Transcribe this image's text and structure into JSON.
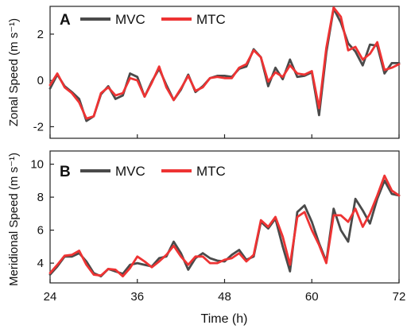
{
  "x_axis": {
    "label": "Time (h)",
    "ticks": [
      24,
      36,
      48,
      60,
      72
    ],
    "tick_labels": [
      "24",
      "36",
      "48",
      "60",
      "72"
    ]
  },
  "colors": {
    "MVC": "#4a4a4a",
    "MTC": "#ee3333"
  },
  "chart_data": [
    {
      "type": "line",
      "panel_label": "A",
      "ylabel": "Zonal Speed (m s⁻¹)",
      "xlim": [
        24,
        72
      ],
      "ylim": [
        -2.5,
        3.2
      ],
      "yticks": [
        -2,
        0,
        2
      ],
      "ytick_labels": [
        "-2",
        "0",
        "2"
      ],
      "grid": false,
      "legend": "top-left",
      "x": [
        24,
        25,
        26,
        27,
        28,
        29,
        30,
        31,
        32,
        33,
        34,
        35,
        36,
        37,
        38,
        39,
        40,
        41,
        42,
        43,
        44,
        45,
        46,
        47,
        48,
        49,
        50,
        51,
        52,
        53,
        54,
        55,
        56,
        57,
        58,
        59,
        60,
        61,
        62,
        63,
        64,
        65,
        66,
        67,
        68,
        69,
        70,
        71,
        72
      ],
      "series": [
        {
          "name": "MVC",
          "values": [
            -0.35,
            0.25,
            -0.25,
            -0.5,
            -0.8,
            -1.75,
            -1.55,
            -0.6,
            -0.25,
            -0.8,
            -0.65,
            0.3,
            0.15,
            -0.7,
            -0.05,
            0.5,
            -0.2,
            -0.85,
            -0.4,
            0.25,
            -0.5,
            -0.25,
            0.1,
            0.2,
            0.2,
            0.15,
            0.5,
            0.6,
            1.35,
            1.0,
            -0.25,
            0.55,
            0.05,
            0.9,
            0.15,
            0.2,
            0.35,
            -1.5,
            1.2,
            3.1,
            2.5,
            1.6,
            1.25,
            0.65,
            1.55,
            1.5,
            0.3,
            0.75,
            0.75
          ]
        },
        {
          "name": "MTC",
          "values": [
            -0.2,
            0.3,
            -0.3,
            -0.55,
            -0.95,
            -1.65,
            -1.55,
            -0.55,
            -0.3,
            -0.65,
            -0.55,
            0.1,
            0.0,
            -0.7,
            -0.1,
            0.6,
            -0.3,
            -0.85,
            -0.35,
            0.2,
            -0.45,
            -0.3,
            0.1,
            0.15,
            0.1,
            0.1,
            0.55,
            0.7,
            1.3,
            1.0,
            -0.05,
            0.35,
            0.15,
            0.65,
            0.3,
            0.25,
            0.4,
            -1.2,
            1.4,
            3.15,
            2.75,
            1.3,
            1.45,
            0.9,
            1.15,
            1.65,
            0.45,
            0.55,
            0.7
          ]
        }
      ]
    },
    {
      "type": "line",
      "panel_label": "B",
      "ylabel": "Meridional Speed (m s⁻¹)",
      "xlim": [
        24,
        72
      ],
      "ylim": [
        2.8,
        10.8
      ],
      "yticks": [
        4,
        6,
        8,
        10
      ],
      "ytick_labels": [
        "4",
        "6",
        "8",
        "10"
      ],
      "grid": false,
      "legend": "top-left",
      "x": [
        24,
        25,
        26,
        27,
        28,
        29,
        30,
        31,
        32,
        33,
        34,
        35,
        36,
        37,
        38,
        39,
        40,
        41,
        42,
        43,
        44,
        45,
        46,
        47,
        48,
        49,
        50,
        51,
        52,
        53,
        54,
        55,
        56,
        57,
        58,
        59,
        60,
        61,
        62,
        63,
        64,
        65,
        66,
        67,
        68,
        69,
        70,
        71,
        72
      ],
      "series": [
        {
          "name": "MVC",
          "values": [
            3.3,
            3.8,
            4.4,
            4.4,
            4.6,
            4.1,
            3.4,
            3.2,
            3.65,
            3.5,
            3.35,
            3.9,
            4.0,
            3.9,
            3.8,
            4.3,
            4.4,
            5.3,
            4.6,
            3.6,
            4.3,
            4.6,
            4.3,
            4.15,
            4.1,
            4.5,
            4.8,
            4.2,
            4.4,
            6.5,
            6.1,
            6.7,
            5.0,
            3.5,
            7.1,
            7.5,
            6.5,
            5.2,
            4.1,
            7.3,
            6.0,
            5.3,
            7.9,
            7.2,
            6.4,
            7.9,
            9.0,
            8.2,
            8.1
          ]
        },
        {
          "name": "MTC",
          "values": [
            3.4,
            3.9,
            4.45,
            4.5,
            4.75,
            3.9,
            3.3,
            3.25,
            3.65,
            3.6,
            3.2,
            3.7,
            4.4,
            4.1,
            3.75,
            4.1,
            4.5,
            5.05,
            4.4,
            3.9,
            4.4,
            4.4,
            4.0,
            4.0,
            4.2,
            4.3,
            4.6,
            4.1,
            4.5,
            6.6,
            6.2,
            6.8,
            5.6,
            3.9,
            6.8,
            7.1,
            6.0,
            5.1,
            4.0,
            6.9,
            6.9,
            6.5,
            7.3,
            6.2,
            7.0,
            8.1,
            9.3,
            8.4,
            8.1
          ]
        }
      ]
    }
  ]
}
